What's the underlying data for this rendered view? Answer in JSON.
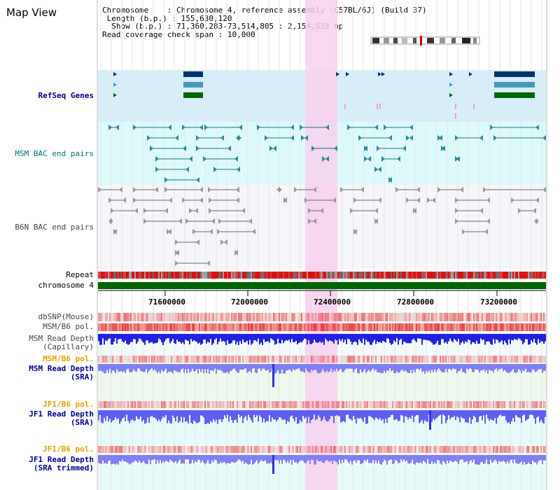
{
  "title": "Map View",
  "info": {
    "chromosome_label": "Chromosome",
    "chromosome_value": "Chromosome 4, reference assembly (C57BL/6J) (Build 37)",
    "length_label": "Length (b.p.)",
    "length_value": "155,630,120",
    "show_label": "Show (b.p.)",
    "show_value": "71,360,283-73,514,805 : 2,154,523 bp",
    "coverage_label": "Read coverage check span",
    "coverage_value": "10,000"
  },
  "tracks": {
    "refseq": "RefSeq Genes",
    "msm_bac": "MSM BAC end pairs",
    "b6n_bac": "B6N BAC end pairs",
    "repeat": "Repeat",
    "chromosome": "chromosome 4",
    "dbsnp": "dbSNP(Mouse)",
    "msm_b6_pol_1": "MSM/B6 pol.",
    "msm_read_depth_cap": "MSM Read Depth\n(Capillary)",
    "msm_b6_pol_2": "MSM/B6 pol.",
    "msm_read_depth_sra": "MSM Read Depth\n(SRA)",
    "jf1_b6_pol_1": "JF1/B6 pol.",
    "jf1_read_depth_sra": "JF1 Read Depth\n(SRA)",
    "jf1_b6_pol_2": "JF1/B6 pol.",
    "jf1_read_depth_trim": "JF1 Read Depth\n(SRA trimmed)"
  },
  "axis_ticks": [
    "71600000",
    "72000000",
    "72400000",
    "72800000",
    "73200000"
  ],
  "colors": {
    "refseq_bg": "#d6eef9",
    "msm_bac_bg": "#dcfafa",
    "b6n_bac_bg": "#f5f5fa",
    "highlight": "#f8d0ef",
    "chromosome_bar": "#006400",
    "navy": "#00008b",
    "orange": "#e0a000"
  }
}
